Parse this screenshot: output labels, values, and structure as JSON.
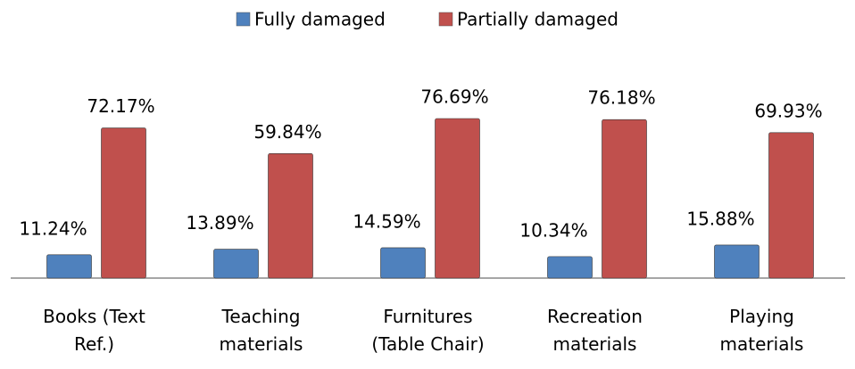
{
  "chart_data": {
    "type": "bar",
    "categories": [
      "Books (Text Ref.)",
      "Teaching materials",
      "Furnitures (Table Chair)",
      "Recreation materials",
      "Playing materials"
    ],
    "series": [
      {
        "name": "Fully damaged",
        "color": "#4f81bd",
        "values": [
          11.24,
          13.89,
          14.59,
          10.34,
          15.88
        ],
        "value_labels": [
          "11.24%",
          "13.89%",
          "14.59%",
          "10.34%",
          "15.88%"
        ]
      },
      {
        "name": "Partially damaged",
        "color": "#c0504d",
        "values": [
          72.17,
          59.84,
          76.69,
          76.18,
          69.93
        ],
        "value_labels": [
          "72.17%",
          "59.84%",
          "76.69%",
          "76.18%",
          "69.93%"
        ]
      }
    ],
    "legend": "top"
  }
}
